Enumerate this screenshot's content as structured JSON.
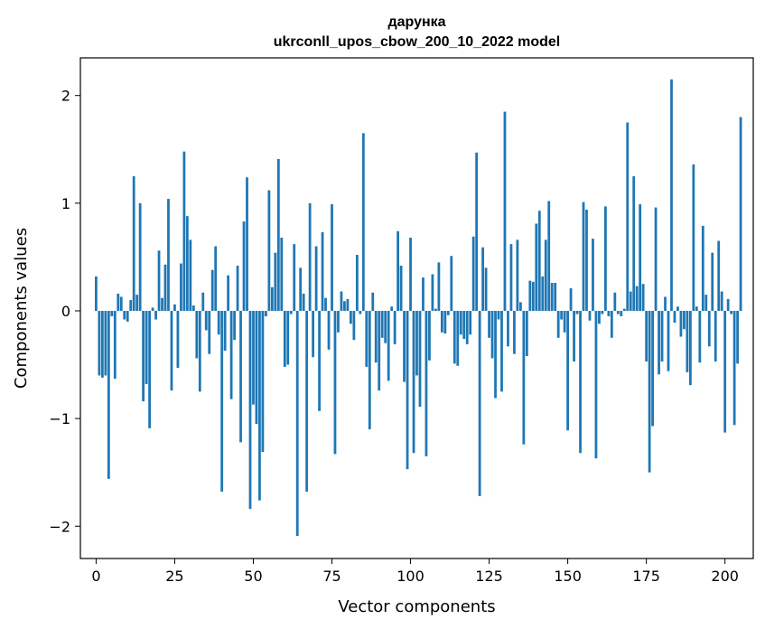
{
  "chart_data": {
    "type": "bar",
    "title_line1": "дарунка",
    "title_line2": "ukrconll_upos_cbow_200_10_2022 model",
    "xlabel": "Vector components",
    "ylabel": "Components values",
    "xlim": [
      -5,
      209
    ],
    "ylim": [
      -2.3,
      2.35
    ],
    "grid": false,
    "bar_color": "#1f77b4",
    "x_ticks": [
      0,
      25,
      50,
      75,
      100,
      125,
      150,
      175,
      200
    ],
    "x_tick_labels": [
      "0",
      "25",
      "50",
      "75",
      "100",
      "125",
      "150",
      "175",
      "200"
    ],
    "y_ticks": [
      -2,
      -1,
      0,
      1,
      2
    ],
    "y_tick_labels": [
      "−2",
      "−1",
      "0",
      "1",
      "2"
    ],
    "values": [
      0.32,
      -0.6,
      -0.62,
      -0.6,
      -1.56,
      -0.05,
      -0.63,
      0.16,
      0.13,
      -0.08,
      -0.1,
      0.1,
      1.25,
      0.15,
      1.0,
      -0.84,
      -0.68,
      -1.09,
      0.03,
      -0.08,
      0.56,
      0.12,
      0.43,
      1.04,
      -0.74,
      0.06,
      -0.53,
      0.44,
      1.48,
      0.88,
      0.66,
      0.05,
      -0.44,
      -0.75,
      0.17,
      -0.18,
      -0.4,
      0.38,
      0.6,
      -0.22,
      -1.68,
      -0.37,
      0.33,
      -0.82,
      -0.27,
      0.42,
      -1.22,
      0.83,
      1.24,
      -1.84,
      -0.87,
      -1.05,
      -1.76,
      -1.31,
      -0.05,
      1.12,
      0.22,
      0.54,
      1.41,
      0.68,
      -0.52,
      -0.5,
      -0.03,
      0.62,
      -2.09,
      0.4,
      0.16,
      -1.68,
      1.0,
      -0.43,
      0.6,
      -0.93,
      0.73,
      0.12,
      -0.36,
      0.99,
      -1.33,
      -0.2,
      0.18,
      0.09,
      0.11,
      -0.12,
      -0.27,
      0.52,
      -0.03,
      1.65,
      -0.52,
      -1.1,
      0.17,
      -0.48,
      -0.74,
      -0.25,
      -0.3,
      -0.65,
      0.04,
      -0.31,
      0.74,
      0.42,
      -0.66,
      -1.47,
      0.68,
      -1.32,
      -0.6,
      -0.89,
      0.31,
      -1.35,
      -0.46,
      0.34,
      0.02,
      0.45,
      -0.2,
      -0.21,
      -0.04,
      0.51,
      -0.49,
      -0.51,
      -0.22,
      -0.26,
      -0.31,
      -0.22,
      0.69,
      1.47,
      -1.72,
      0.59,
      0.4,
      -0.25,
      -0.44,
      -0.81,
      -0.08,
      -0.75,
      1.85,
      -0.33,
      0.62,
      -0.4,
      0.66,
      0.08,
      -1.24,
      -0.42,
      0.28,
      0.27,
      0.81,
      0.93,
      0.32,
      0.66,
      1.02,
      0.26,
      0.26,
      -0.25,
      -0.08,
      -0.2,
      -1.11,
      0.21,
      -0.47,
      -0.03,
      -1.32,
      1.01,
      0.94,
      -0.09,
      0.67,
      -1.37,
      -0.12,
      -0.03,
      0.97,
      -0.05,
      -0.25,
      0.17,
      -0.03,
      -0.05,
      0.02,
      1.75,
      0.18,
      1.25,
      0.23,
      0.99,
      0.25,
      -0.47,
      -1.5,
      -1.07,
      0.96,
      -0.59,
      -0.47,
      0.13,
      -0.56,
      2.15,
      -0.11,
      0.04,
      -0.24,
      -0.17,
      -0.57,
      -0.69,
      1.36,
      0.04,
      -0.48,
      0.79,
      0.15,
      -0.33,
      0.54,
      -0.47,
      0.65,
      0.18,
      -1.13,
      0.11,
      -0.03,
      -1.06,
      -0.49,
      1.8
    ]
  }
}
